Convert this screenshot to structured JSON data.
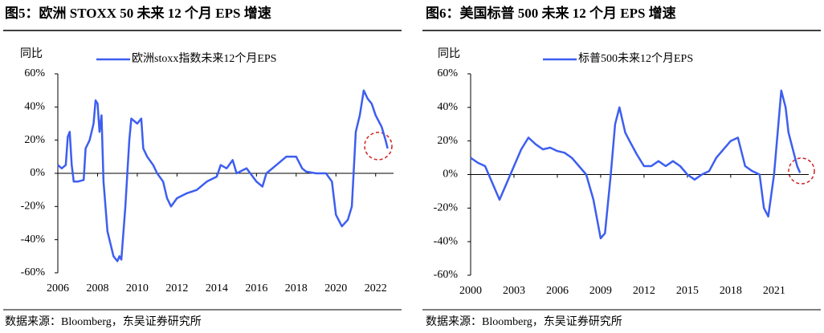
{
  "chart_data": [
    {
      "type": "line",
      "title": "图5：欧洲 STOXX 50 未来 12 个月 EPS 增速",
      "y_label": "同比",
      "source": "数据来源：Bloomberg，东吴证券研究所",
      "xlim": [
        2006,
        2022.9
      ],
      "xticks": [
        2006,
        2008,
        2010,
        2012,
        2014,
        2016,
        2018,
        2020,
        2022
      ],
      "ylim": [
        -60,
        60
      ],
      "yticks": [
        {
          "value": -60,
          "label": "-60%"
        },
        {
          "value": -40,
          "label": "-40%"
        },
        {
          "value": -20,
          "label": "-20%"
        },
        {
          "value": 0,
          "label": "0%"
        },
        {
          "value": 20,
          "label": "20%"
        },
        {
          "value": 40,
          "label": "40%"
        },
        {
          "value": 60,
          "label": "60%"
        }
      ],
      "series": [
        {
          "name": "欧洲stoxx指数未来12个月EPS",
          "color": "#3d5ef0",
          "x": [
            2006.0,
            2006.2,
            2006.4,
            2006.5,
            2006.6,
            2006.7,
            2006.8,
            2007.0,
            2007.3,
            2007.4,
            2007.6,
            2007.8,
            2007.9,
            2008.0,
            2008.1,
            2008.2,
            2008.3,
            2008.5,
            2008.8,
            2009.0,
            2009.1,
            2009.2,
            2009.4,
            2009.6,
            2009.7,
            2010.0,
            2010.2,
            2010.3,
            2010.5,
            2010.8,
            2011.0,
            2011.3,
            2011.5,
            2011.7,
            2012.0,
            2012.5,
            2013.0,
            2013.5,
            2014.0,
            2014.2,
            2014.5,
            2014.8,
            2015.0,
            2015.5,
            2016.0,
            2016.3,
            2016.5,
            2017.0,
            2017.5,
            2018.0,
            2018.3,
            2018.5,
            2019.0,
            2019.5,
            2019.8,
            2020.0,
            2020.3,
            2020.6,
            2020.8,
            2021.0,
            2021.2,
            2021.4,
            2021.6,
            2021.8,
            2022.0,
            2022.3,
            2022.5,
            2022.6
          ],
          "values": [
            5,
            3,
            5,
            22,
            25,
            5,
            -5,
            -5,
            -4,
            15,
            20,
            30,
            44,
            42,
            25,
            35,
            -5,
            -35,
            -50,
            -53,
            -50,
            -52,
            -20,
            20,
            33,
            30,
            33,
            15,
            10,
            5,
            0,
            -5,
            -15,
            -20,
            -15,
            -12,
            -10,
            -5,
            -2,
            5,
            3,
            8,
            0,
            3,
            -5,
            -8,
            0,
            5,
            10,
            10,
            3,
            1,
            0,
            0,
            -5,
            -25,
            -32,
            -28,
            -20,
            25,
            35,
            50,
            45,
            42,
            35,
            28,
            20,
            15
          ]
        }
      ]
    },
    {
      "type": "line",
      "title": "图6：美国标普 500 未来 12 个月 EPS 增速",
      "y_label": "同比",
      "source": "数据来源：Bloomberg，东吴证券研究所",
      "xlim": [
        2000,
        2023.4
      ],
      "xticks": [
        2000,
        2003,
        2006,
        2009,
        2012,
        2015,
        2018,
        2021
      ],
      "ylim": [
        -60,
        60
      ],
      "yticks": [
        {
          "value": -60,
          "label": "-60%"
        },
        {
          "value": -40,
          "label": "-40%"
        },
        {
          "value": -20,
          "label": "-20%"
        },
        {
          "value": 0,
          "label": "0%"
        },
        {
          "value": 20,
          "label": "20%"
        },
        {
          "value": 40,
          "label": "40%"
        },
        {
          "value": 60,
          "label": "60%"
        }
      ],
      "series": [
        {
          "name": "标普500未来12个月EPS",
          "color": "#3d5ef0",
          "x": [
            2000.0,
            2000.5,
            2001.0,
            2001.5,
            2002.0,
            2002.5,
            2003.0,
            2003.5,
            2004.0,
            2004.5,
            2005.0,
            2005.5,
            2006.0,
            2006.5,
            2007.0,
            2007.5,
            2008.0,
            2008.5,
            2009.0,
            2009.3,
            2009.7,
            2010.0,
            2010.3,
            2010.7,
            2011.0,
            2011.5,
            2012.0,
            2012.5,
            2013.0,
            2013.5,
            2014.0,
            2014.5,
            2015.0,
            2015.5,
            2016.0,
            2016.5,
            2017.0,
            2017.5,
            2018.0,
            2018.5,
            2019.0,
            2019.5,
            2020.0,
            2020.3,
            2020.6,
            2021.0,
            2021.2,
            2021.5,
            2021.8,
            2022.0,
            2022.3,
            2022.6,
            2022.8
          ],
          "values": [
            10,
            7,
            5,
            -5,
            -15,
            -5,
            5,
            15,
            22,
            18,
            15,
            16,
            14,
            13,
            10,
            5,
            0,
            -15,
            -38,
            -35,
            0,
            30,
            40,
            25,
            20,
            12,
            5,
            5,
            8,
            5,
            8,
            5,
            0,
            -3,
            0,
            2,
            10,
            15,
            20,
            22,
            5,
            2,
            0,
            -20,
            -25,
            0,
            20,
            50,
            40,
            25,
            15,
            5,
            1
          ]
        }
      ]
    }
  ]
}
